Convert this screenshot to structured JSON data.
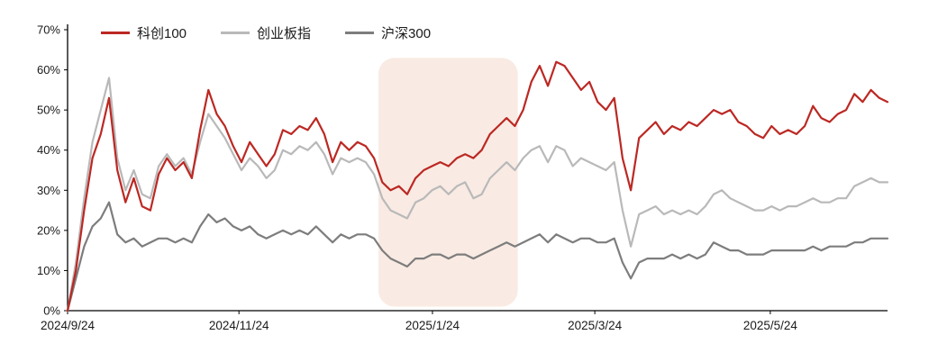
{
  "page": {
    "background": "#ffffff",
    "axis_color": "#000000",
    "label_color": "#1a1a1a"
  },
  "chart_data": {
    "type": "line",
    "title": "",
    "xlabel": "",
    "ylabel": "",
    "ylim": [
      0,
      70
    ],
    "grid": false,
    "legend_position": "top-left",
    "y_ticks": [
      "0%",
      "10%",
      "20%",
      "30%",
      "40%",
      "50%",
      "60%",
      "70%"
    ],
    "x_ticks": [
      {
        "label": "2024/9/24",
        "pos": 0.0
      },
      {
        "label": "2024/11/24",
        "pos": 0.209
      },
      {
        "label": "2025/1/24",
        "pos": 0.445
      },
      {
        "label": "2025/3/24",
        "pos": 0.643
      },
      {
        "label": "2025/5/24",
        "pos": 0.857
      }
    ],
    "highlight_region": {
      "start": 0.379,
      "end": 0.549,
      "top_value": 63,
      "bottom_value": 1,
      "color": "#f4d7c8",
      "opacity": 0.5,
      "corner_radius": 18
    },
    "series": [
      {
        "name": "科创100",
        "color": "#bc2823",
        "values": [
          0,
          10,
          25,
          38,
          44,
          53,
          35,
          27,
          33,
          26,
          25,
          34,
          38,
          35,
          37,
          33,
          45,
          55,
          49,
          46,
          41,
          37,
          42,
          39,
          36,
          39,
          45,
          44,
          46,
          45,
          48,
          44,
          37,
          42,
          40,
          42,
          41,
          38,
          32,
          30,
          31,
          29,
          33,
          35,
          36,
          37,
          36,
          38,
          39,
          38,
          40,
          44,
          46,
          48,
          46,
          50,
          57,
          61,
          56,
          62,
          61,
          58,
          55,
          57,
          52,
          50,
          53,
          38,
          30,
          43,
          45,
          47,
          44,
          46,
          45,
          47,
          46,
          48,
          50,
          49,
          50,
          47,
          46,
          44,
          43,
          46,
          44,
          45,
          44,
          46,
          51,
          48,
          47,
          49,
          50,
          54,
          52,
          55,
          53,
          52
        ]
      },
      {
        "name": "创业板指",
        "color": "#b9b9b9",
        "values": [
          0,
          12,
          28,
          42,
          50,
          58,
          38,
          30,
          35,
          29,
          28,
          36,
          39,
          36,
          38,
          34,
          42,
          49,
          46,
          43,
          39,
          35,
          38,
          36,
          33,
          35,
          40,
          39,
          41,
          40,
          42,
          39,
          34,
          38,
          37,
          38,
          37,
          34,
          28,
          25,
          24,
          23,
          27,
          28,
          30,
          31,
          29,
          31,
          32,
          28,
          29,
          33,
          35,
          37,
          35,
          38,
          40,
          41,
          37,
          41,
          40,
          36,
          38,
          37,
          36,
          35,
          37,
          25,
          16,
          24,
          25,
          26,
          24,
          25,
          24,
          25,
          24,
          26,
          29,
          30,
          28,
          27,
          26,
          25,
          25,
          26,
          25,
          26,
          26,
          27,
          28,
          27,
          27,
          28,
          28,
          31,
          32,
          33,
          32,
          32
        ]
      },
      {
        "name": "沪深300",
        "color": "#7d7d7d",
        "values": [
          0,
          8,
          16,
          21,
          23,
          27,
          19,
          17,
          18,
          16,
          17,
          18,
          18,
          17,
          18,
          17,
          21,
          24,
          22,
          23,
          21,
          20,
          21,
          19,
          18,
          19,
          20,
          19,
          20,
          19,
          21,
          19,
          17,
          19,
          18,
          19,
          19,
          18,
          15,
          13,
          12,
          11,
          13,
          13,
          14,
          14,
          13,
          14,
          14,
          13,
          14,
          15,
          16,
          17,
          16,
          17,
          18,
          19,
          17,
          19,
          18,
          17,
          18,
          18,
          17,
          17,
          18,
          12,
          8,
          12,
          13,
          13,
          13,
          14,
          13,
          14,
          13,
          14,
          17,
          16,
          15,
          15,
          14,
          14,
          14,
          15,
          15,
          15,
          15,
          15,
          16,
          15,
          16,
          16,
          16,
          17,
          17,
          18,
          18,
          18
        ]
      }
    ]
  }
}
